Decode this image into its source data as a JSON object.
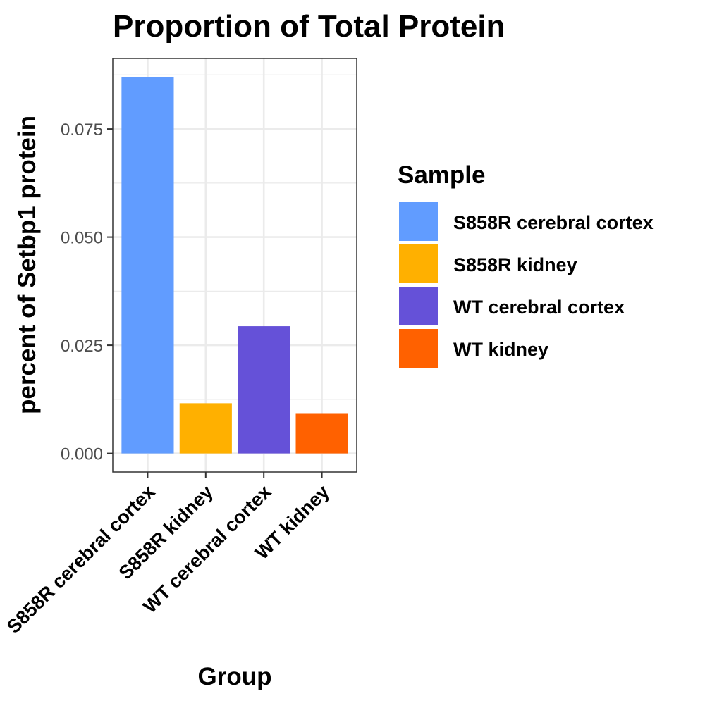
{
  "chart_data": {
    "type": "bar",
    "title": "Proportion of Total Protein",
    "xlabel": "Group",
    "ylabel": "percent of Setbp1 protein",
    "categories": [
      "S858R cerebral cortex",
      "S858R kidney",
      "WT cerebral cortex",
      "WT kidney"
    ],
    "values": [
      0.087,
      0.0116,
      0.0294,
      0.0093
    ],
    "colors": [
      "#619CFF",
      "#FFB000",
      "#6551D8",
      "#FF6100"
    ],
    "ylim": [
      -0.0043,
      0.0913
    ],
    "yticks": [
      0,
      0.025,
      0.05,
      0.075
    ],
    "ytick_labels": [
      "0.000",
      "0.025",
      "0.050",
      "0.075"
    ],
    "grid": true,
    "legend": {
      "title": "Sample",
      "position": "right",
      "items": [
        "S858R cerebral cortex",
        "S858R kidney",
        "WT cerebral cortex",
        "WT kidney"
      ]
    }
  }
}
